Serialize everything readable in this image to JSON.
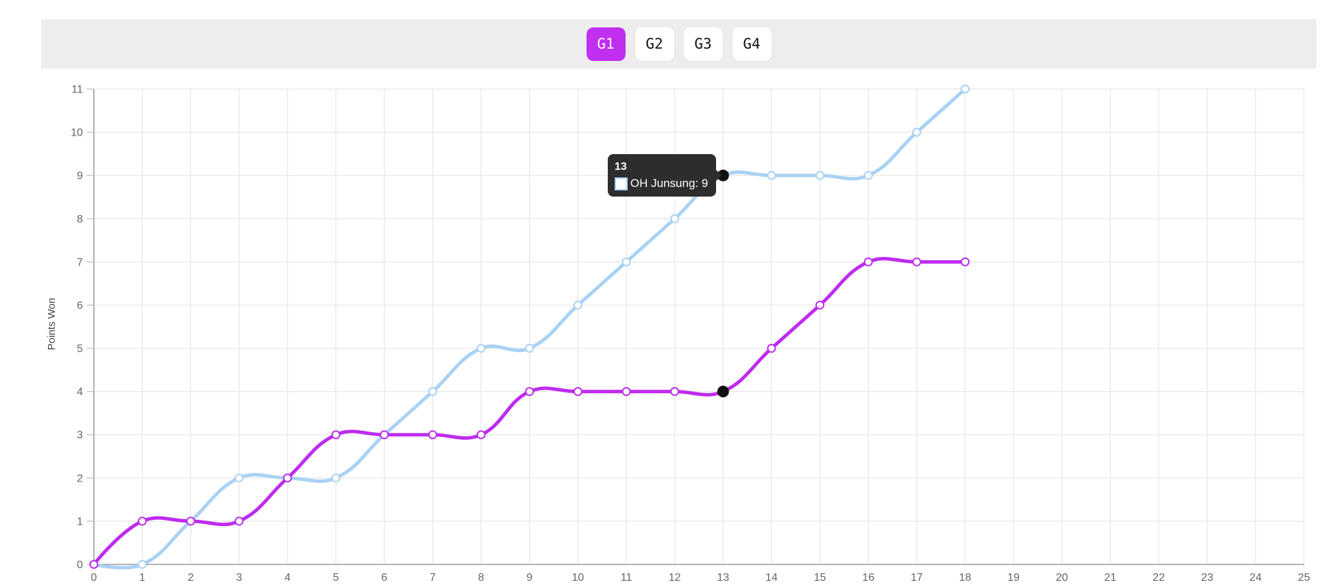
{
  "toolbar": {
    "tabs": [
      {
        "label": "G1",
        "active": true
      },
      {
        "label": "G2",
        "active": false
      },
      {
        "label": "G3",
        "active": false
      },
      {
        "label": "G4",
        "active": false
      }
    ]
  },
  "colors": {
    "accent": "#c12ff0",
    "series_blue": "#a9d2f4",
    "series_magenta": "#bd2cee",
    "grid": "#e9e9e9",
    "axis": "#9a9a9a",
    "tick_mark": "#c4c4c4",
    "tick_label": "#656565",
    "axis_title": "#454545",
    "toolbar_bg": "#ededed",
    "tooltip_bg": "#2d2d2d",
    "active_point": "#111111",
    "marker_fill": "#ffffff"
  },
  "chart_data": {
    "type": "line",
    "title": "",
    "xlabel": "",
    "ylabel": "Points Won",
    "xlim": [
      0,
      25
    ],
    "ylim": [
      0,
      11
    ],
    "grid": true,
    "legend_position": "none",
    "x_ticks": [
      0,
      1,
      2,
      3,
      4,
      5,
      6,
      7,
      8,
      9,
      10,
      11,
      12,
      13,
      14,
      15,
      16,
      17,
      18,
      19,
      20,
      21,
      22,
      23,
      24,
      25
    ],
    "y_ticks": [
      0,
      1,
      2,
      3,
      4,
      5,
      6,
      7,
      8,
      9,
      10,
      11
    ],
    "x": [
      0,
      1,
      2,
      3,
      4,
      5,
      6,
      7,
      8,
      9,
      10,
      11,
      12,
      13,
      14,
      15,
      16,
      17,
      18
    ],
    "series": [
      {
        "name": "OH Junsung",
        "color": "#a9d2f4",
        "values": [
          0,
          0,
          1,
          2,
          2,
          2,
          3,
          4,
          5,
          5,
          6,
          7,
          8,
          9,
          9,
          9,
          9,
          10,
          11
        ]
      },
      {
        "name": "",
        "color": "#bd2cee",
        "values": [
          0,
          1,
          1,
          1,
          2,
          3,
          3,
          3,
          3,
          4,
          4,
          4,
          4,
          4,
          5,
          6,
          7,
          7,
          7
        ]
      }
    ],
    "active_points": [
      {
        "x": 13,
        "y": 9
      },
      {
        "x": 13,
        "y": 4
      }
    ],
    "tooltip": {
      "title": "13",
      "entry_label": "OH Junsung: 9",
      "swatch_color": "#a9d2f4",
      "anchor": {
        "x": 13,
        "y": 9
      }
    }
  }
}
